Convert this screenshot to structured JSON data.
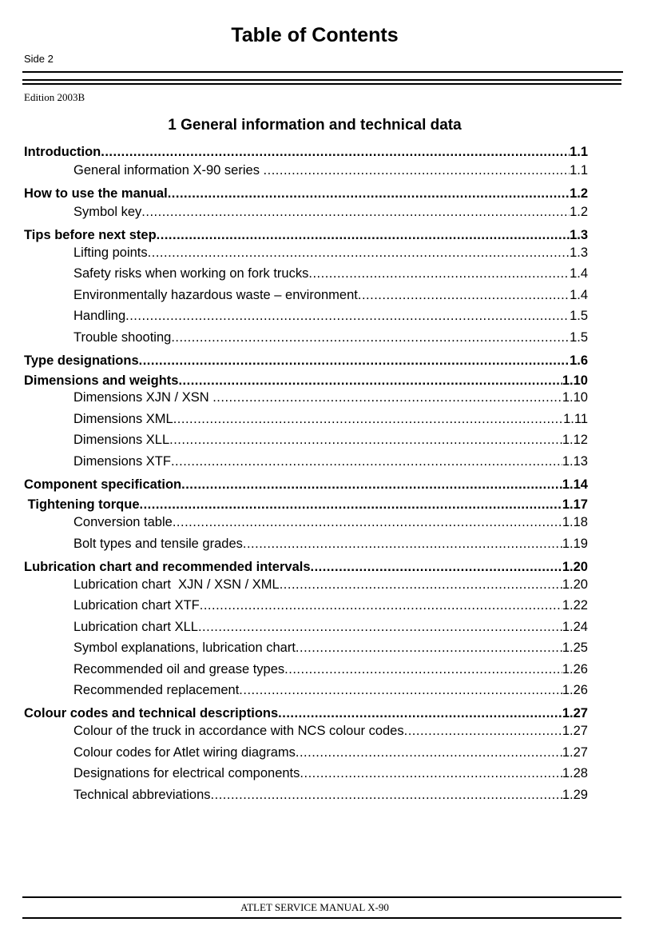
{
  "header": {
    "title": "Table of Contents",
    "side": "Side 2",
    "edition": "Edition 2003B"
  },
  "section_title": "1  General information and technical data",
  "entries": [
    {
      "label": "Introduction",
      "page": "1.1",
      "level": "main"
    },
    {
      "label": "General information X-90 series ",
      "page": "1.1",
      "level": "sub"
    },
    {
      "label": "How to use the manual",
      "page": "1.2",
      "level": "main"
    },
    {
      "label": "Symbol key",
      "page": "1.2",
      "level": "sub"
    },
    {
      "label": "Tips before next step",
      "page": "1.3",
      "level": "main"
    },
    {
      "label": "Lifting points",
      "page": "1.3",
      "level": "sub"
    },
    {
      "label": "Safety risks when working on fork trucks",
      "page": "1.4",
      "level": "sub"
    },
    {
      "label": "Environmentally hazardous waste – environment",
      "page": "1.4",
      "level": "sub"
    },
    {
      "label": "Handling",
      "page": "1.5",
      "level": "sub"
    },
    {
      "label": "Trouble shooting",
      "page": "1.5",
      "level": "sub"
    },
    {
      "label": "Type designations",
      "page": "1.6",
      "level": "main"
    },
    {
      "label": "Dimensions and weights",
      "page": "1.10",
      "level": "main"
    },
    {
      "label": "Dimensions XJN / XSN ",
      "page": "1.10",
      "level": "sub"
    },
    {
      "label": "Dimensions XML",
      "page": "1.11",
      "level": "sub"
    },
    {
      "label": "Dimensions XLL",
      "page": "1.12",
      "level": "sub"
    },
    {
      "label": "Dimensions XTF",
      "page": "1.13",
      "level": "sub"
    },
    {
      "label": "Component specification",
      "page": "1.14",
      "level": "main"
    },
    {
      "label": " Tightening torque",
      "page": "1.17",
      "level": "main"
    },
    {
      "label": "Conversion table",
      "page": "1.18",
      "level": "sub"
    },
    {
      "label": "Bolt types and tensile grades",
      "page": "1.19",
      "level": "sub"
    },
    {
      "label": "Lubrication chart and recommended intervals",
      "page": "1.20",
      "level": "main"
    },
    {
      "label": "Lubrication chart  XJN / XSN / XML",
      "page": "1.20",
      "level": "sub"
    },
    {
      "label": "Lubrication chart XTF",
      "page": "1.22",
      "level": "sub"
    },
    {
      "label": "Lubrication chart XLL",
      "page": "1.24",
      "level": "sub"
    },
    {
      "label": "Symbol explanations, lubrication chart",
      "page": "1.25",
      "level": "sub"
    },
    {
      "label": "Recommended oil and grease types",
      "page": "1.26",
      "level": "sub"
    },
    {
      "label": "Recommended replacement",
      "page": "1.26",
      "level": "sub"
    },
    {
      "label": "Colour codes and technical descriptions",
      "page": "1.27",
      "level": "main"
    },
    {
      "label": "Colour of the truck in accordance with NCS colour codes",
      "page": "1.27",
      "level": "sub"
    },
    {
      "label": "Colour codes for Atlet wiring diagrams",
      "page": "1.27",
      "level": "sub"
    },
    {
      "label": "Designations for electrical components",
      "page": "1.28",
      "level": "sub"
    },
    {
      "label": "Technical abbreviations",
      "page": "1.29",
      "level": "sub"
    }
  ],
  "footer": {
    "text": "ATLET SERVICE MANUAL X-90"
  }
}
